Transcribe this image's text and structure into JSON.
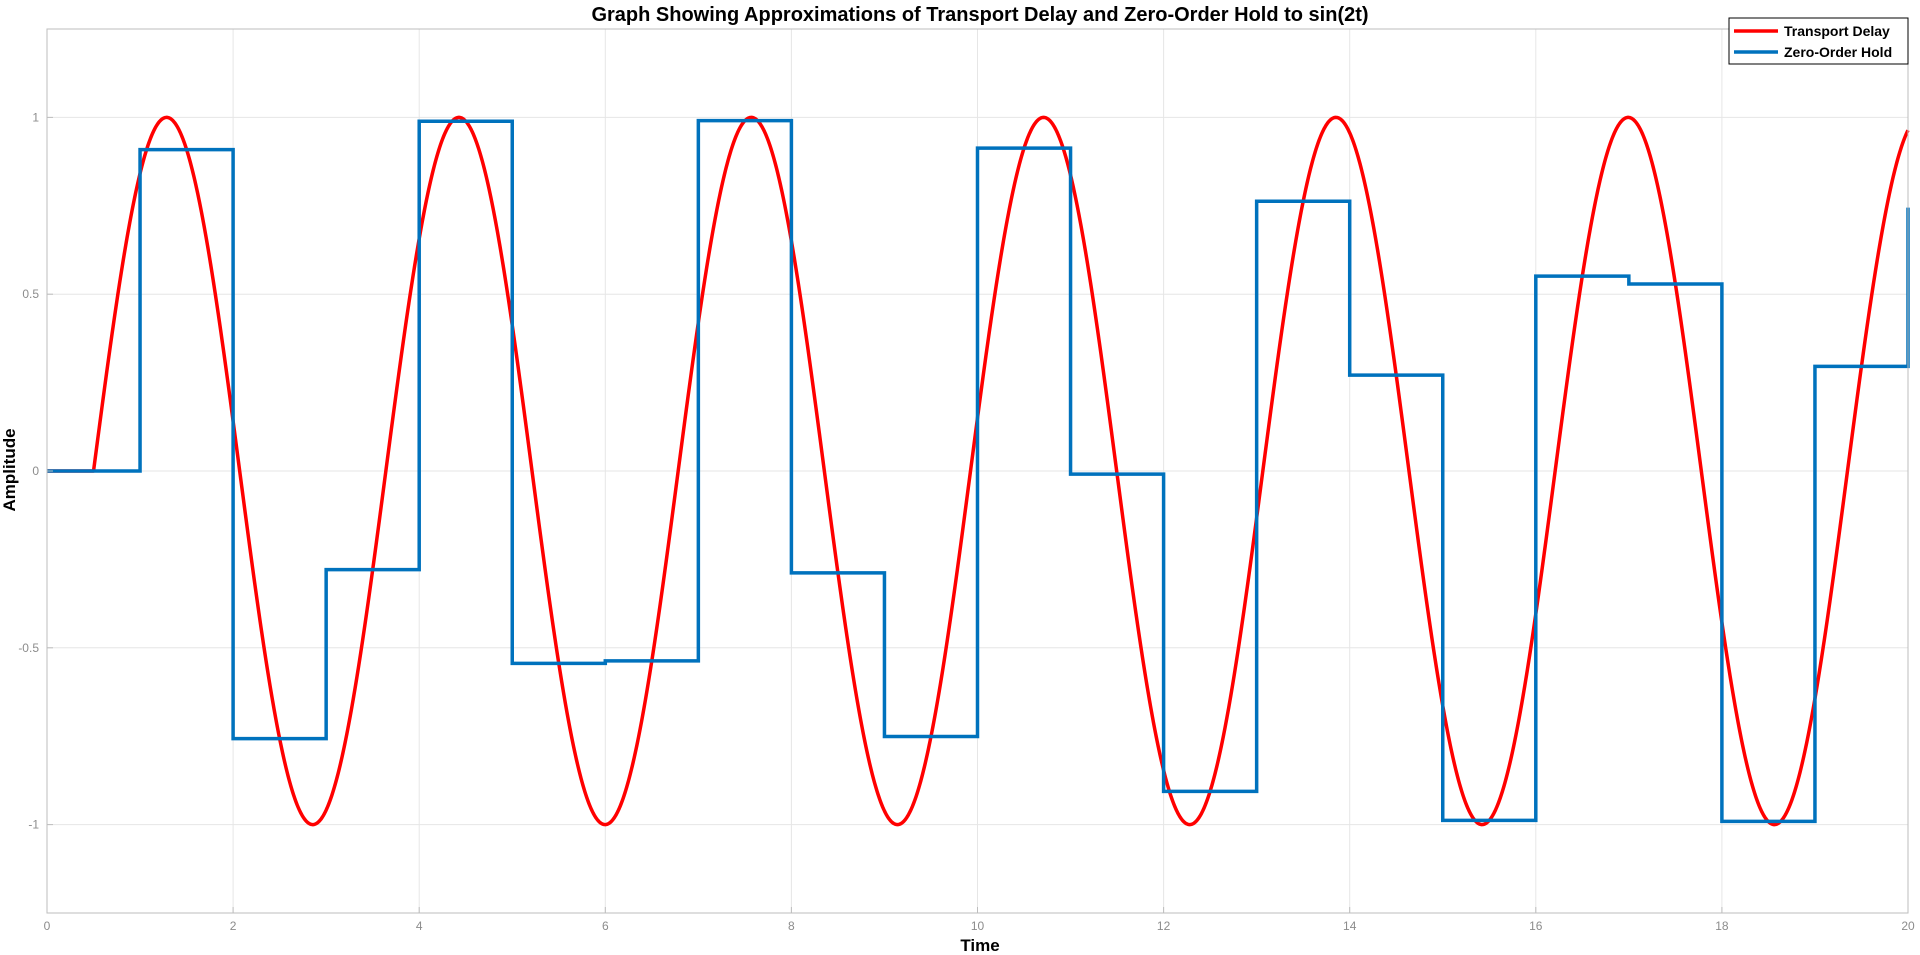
{
  "chart_data": {
    "type": "line",
    "title": "Graph Showing Approximations of Transport Delay and Zero-Order Hold to sin(2t)",
    "xlabel": "Time",
    "ylabel": "Amplitude",
    "xlim": [
      0,
      20
    ],
    "ylim": [
      -1.25,
      1.25
    ],
    "grid": true,
    "legend_position": "top-right",
    "x_ticks": [
      0,
      2,
      4,
      6,
      8,
      10,
      12,
      14,
      16,
      18,
      20
    ],
    "x_tick_labels": [
      "0",
      "2",
      "4",
      "6",
      "8",
      "10",
      "12",
      "14",
      "16",
      "18",
      "20"
    ],
    "y_ticks": [
      1,
      0.5,
      0,
      -0.5,
      -1
    ],
    "y_tick_labels": [
      "1",
      "0.5",
      "0",
      "-0.5",
      "-1"
    ],
    "series": [
      {
        "name": "Transport Delay",
        "color": "#ff0000",
        "kind": "function",
        "function": "sin(2*(t - 0.5)) for t >= 0.5, else 0",
        "delay": 0.5,
        "frequency": 2
      },
      {
        "name": "Zero-Order Hold",
        "color": "#0072bd",
        "kind": "step",
        "x": [
          0,
          1,
          2,
          3,
          4,
          5,
          6,
          7,
          8,
          9,
          10,
          11,
          12,
          13,
          14,
          15,
          16,
          17,
          18,
          19,
          20
        ],
        "values": [
          0,
          0.909,
          -0.757,
          -0.279,
          0.989,
          -0.544,
          -0.537,
          0.991,
          -0.288,
          -0.751,
          0.913,
          -0.009,
          -0.906,
          0.763,
          0.271,
          -0.988,
          0.551,
          0.529,
          -0.991,
          0.296,
          0.745
        ]
      }
    ]
  }
}
